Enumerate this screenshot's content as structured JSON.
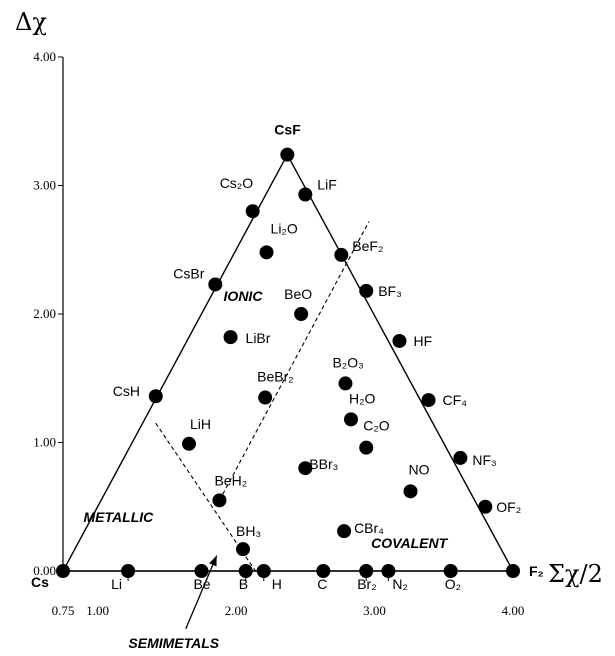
{
  "chart_data": {
    "type": "scatter",
    "title": "",
    "xlabel": "Σχ/2",
    "ylabel": "Δχ",
    "xlim": [
      0.75,
      4.0
    ],
    "ylim": [
      0.0,
      4.0
    ],
    "x_ticks": [
      "0.75",
      "1.00",
      "2.00",
      "3.00",
      "4.00"
    ],
    "x_tick_values": [
      0.75,
      1.0,
      2.0,
      3.0,
      4.0
    ],
    "y_ticks": [
      "0.00",
      "1.00",
      "2.00",
      "3.00",
      "4.00"
    ],
    "y_tick_values": [
      0.0,
      1.0,
      2.0,
      3.0,
      4.0
    ],
    "triangle": {
      "vertices": [
        {
          "name": "Cs",
          "x": 0.75,
          "y": 0.0
        },
        {
          "name": "F₂",
          "x": 4.0,
          "y": 0.0
        },
        {
          "name": "CsF",
          "x": 2.37,
          "y": 3.24
        }
      ]
    },
    "regions": [
      {
        "name": "IONIC",
        "x": 2.05,
        "y": 2.1
      },
      {
        "name": "METALLIC",
        "x": 1.15,
        "y": 0.38
      },
      {
        "name": "COVALENT",
        "x": 3.25,
        "y": 0.18
      },
      {
        "name": "SEMIMETALS",
        "x": 1.55,
        "y": -0.6
      }
    ],
    "points": [
      {
        "label": "CsF",
        "x": 2.37,
        "y": 3.24
      },
      {
        "label": "Cs₂O",
        "x": 2.12,
        "y": 2.8
      },
      {
        "label": "LiF",
        "x": 2.5,
        "y": 2.93
      },
      {
        "label": "Li₂O",
        "x": 2.22,
        "y": 2.48
      },
      {
        "label": "BeF₂",
        "x": 2.76,
        "y": 2.46
      },
      {
        "label": "CsBr",
        "x": 1.85,
        "y": 2.23
      },
      {
        "label": "BF₃",
        "x": 2.94,
        "y": 2.18
      },
      {
        "label": "BeO",
        "x": 2.47,
        "y": 2.0
      },
      {
        "label": "LiBr",
        "x": 1.96,
        "y": 1.82
      },
      {
        "label": "HF",
        "x": 3.18,
        "y": 1.79
      },
      {
        "label": "BeBr₂",
        "x": 2.21,
        "y": 1.35
      },
      {
        "label": "B₂O₃",
        "x": 2.79,
        "y": 1.46
      },
      {
        "label": "CsH",
        "x": 1.42,
        "y": 1.36
      },
      {
        "label": "CF₄",
        "x": 3.39,
        "y": 1.33
      },
      {
        "label": "H₂O",
        "x": 2.83,
        "y": 1.18
      },
      {
        "label": "LiH",
        "x": 1.66,
        "y": 0.99
      },
      {
        "label": "C₂O",
        "x": 2.94,
        "y": 0.96
      },
      {
        "label": "NF₃",
        "x": 3.62,
        "y": 0.88
      },
      {
        "label": "BBr₃",
        "x": 2.5,
        "y": 0.8
      },
      {
        "label": "NO",
        "x": 3.26,
        "y": 0.62
      },
      {
        "label": "BeH₂",
        "x": 1.88,
        "y": 0.55
      },
      {
        "label": "OF₂",
        "x": 3.8,
        "y": 0.5
      },
      {
        "label": "CBr₄",
        "x": 2.78,
        "y": 0.31
      },
      {
        "label": "BH₃",
        "x": 2.05,
        "y": 0.17
      },
      {
        "label": "Cs",
        "x": 0.75,
        "y": 0.0
      },
      {
        "label": "Li",
        "x": 1.22,
        "y": 0.0
      },
      {
        "label": "Be",
        "x": 1.75,
        "y": 0.0
      },
      {
        "label": "B",
        "x": 2.07,
        "y": 0.0
      },
      {
        "label": "H",
        "x": 2.2,
        "y": 0.0
      },
      {
        "label": "C",
        "x": 2.63,
        "y": 0.0
      },
      {
        "label": "Br₂",
        "x": 2.94,
        "y": 0.0
      },
      {
        "label": "N₂",
        "x": 3.1,
        "y": 0.0
      },
      {
        "label": "O₂",
        "x": 3.55,
        "y": 0.0
      },
      {
        "label": "F₂",
        "x": 4.0,
        "y": 0.0
      }
    ],
    "boundary_lines": [
      {
        "name": "metallic-semimetal-boundary",
        "from": [
          1.42,
          1.15
        ],
        "to": [
          2.14,
          0.0
        ]
      },
      {
        "name": "semimetal-covalent-boundary",
        "from": [
          1.88,
          0.55
        ],
        "to": [
          2.96,
          2.72
        ]
      }
    ],
    "grid": false,
    "legend": "none"
  }
}
